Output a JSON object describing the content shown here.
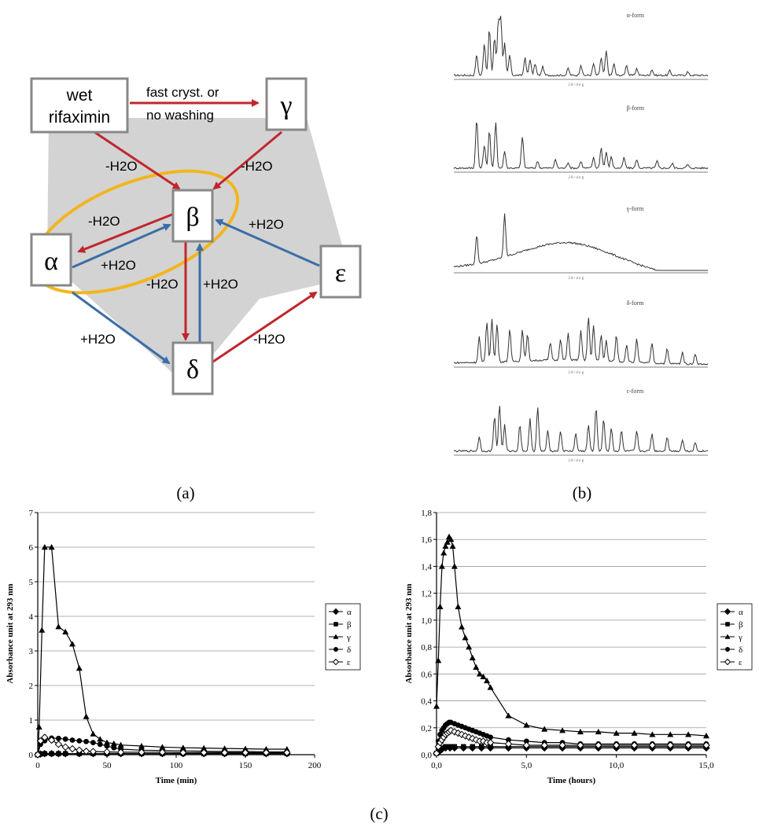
{
  "figure": {
    "panel_labels": [
      "(a)",
      "(b)",
      "(c)"
    ]
  },
  "diagram": {
    "nodes": {
      "wet": [
        "wet",
        "rifaximin"
      ],
      "gamma": "γ",
      "beta": "β",
      "alpha": "α",
      "epsilon": "ε",
      "delta": "δ"
    },
    "edges": {
      "wet_gamma": [
        "fast cryst. or",
        "no washing"
      ],
      "wet_beta": "-H2O",
      "gamma_beta": "-H2O",
      "beta_alpha": "-H2O",
      "alpha_beta": "+H2O",
      "epsilon_beta": "+H2O",
      "beta_delta": "-H2O",
      "delta_beta": "+H2O",
      "alpha_delta": "+H2O",
      "delta_epsilon": "-H2O"
    },
    "colors": {
      "dehydration": "#c0272d",
      "hydration": "#3b6ea8",
      "highlight": "#f2b51d",
      "region": "#d3d3d3"
    }
  },
  "xrd": {
    "panels": [
      {
        "name": "α-form",
        "axis_label": "2 θ / d e g"
      },
      {
        "name": "β-form",
        "axis_label": "2 θ / d e g"
      },
      {
        "name": "γ-form",
        "axis_label": "2 θ / d e g"
      },
      {
        "name": "δ-form",
        "axis_label": "2 θ / d e g"
      },
      {
        "name": "ε-form",
        "axis_label": "2 θ / d e g"
      }
    ]
  },
  "chart_data": [
    {
      "type": "line",
      "ylabel": "Absorbance unit at 293 nm",
      "xlabel": "Time (min)",
      "xlim": [
        0,
        200
      ],
      "ylim": [
        0,
        7
      ],
      "xticks": [
        "0",
        "50",
        "100",
        "150",
        "200"
      ],
      "yticks": [
        "0",
        "1",
        "2",
        "3",
        "4",
        "5",
        "6",
        "7"
      ],
      "grid": true,
      "legend_position": "right",
      "series": [
        {
          "name": "α",
          "marker": "diamond",
          "points": [
            [
              0,
              0
            ],
            [
              2,
              0.02
            ],
            [
              5,
              0.03
            ],
            [
              10,
              0.03
            ],
            [
              15,
              0.03
            ],
            [
              20,
              0.03
            ],
            [
              30,
              0.03
            ],
            [
              40,
              0.03
            ],
            [
              50,
              0.03
            ],
            [
              60,
              0.03
            ],
            [
              75,
              0.03
            ],
            [
              90,
              0.03
            ],
            [
              105,
              0.03
            ],
            [
              120,
              0.03
            ],
            [
              135,
              0.03
            ],
            [
              150,
              0.03
            ],
            [
              165,
              0.03
            ],
            [
              180,
              0.03
            ]
          ]
        },
        {
          "name": "β",
          "marker": "square",
          "points": [
            [
              0,
              0
            ],
            [
              2,
              0.02
            ],
            [
              5,
              0.03
            ],
            [
              10,
              0.03
            ],
            [
              15,
              0.03
            ],
            [
              20,
              0.03
            ],
            [
              30,
              0.03
            ],
            [
              40,
              0.03
            ],
            [
              50,
              0.03
            ],
            [
              60,
              0.03
            ],
            [
              75,
              0.03
            ],
            [
              90,
              0.03
            ],
            [
              105,
              0.03
            ],
            [
              120,
              0.03
            ],
            [
              135,
              0.03
            ],
            [
              150,
              0.03
            ],
            [
              165,
              0.03
            ],
            [
              180,
              0.03
            ]
          ]
        },
        {
          "name": "γ",
          "marker": "triangle",
          "points": [
            [
              0,
              0
            ],
            [
              1,
              0.8
            ],
            [
              3,
              3.6
            ],
            [
              5,
              6.0
            ],
            [
              10,
              6.0
            ],
            [
              15,
              3.7
            ],
            [
              20,
              3.55
            ],
            [
              25,
              3.2
            ],
            [
              30,
              2.5
            ],
            [
              35,
              1.1
            ],
            [
              40,
              0.6
            ],
            [
              45,
              0.45
            ],
            [
              50,
              0.35
            ],
            [
              55,
              0.32
            ],
            [
              60,
              0.28
            ],
            [
              75,
              0.25
            ],
            [
              90,
              0.22
            ],
            [
              105,
              0.2
            ],
            [
              120,
              0.19
            ],
            [
              135,
              0.18
            ],
            [
              150,
              0.17
            ],
            [
              165,
              0.16
            ],
            [
              180,
              0.16
            ]
          ]
        },
        {
          "name": "δ",
          "marker": "circle",
          "points": [
            [
              0,
              0
            ],
            [
              2,
              0.3
            ],
            [
              5,
              0.4
            ],
            [
              10,
              0.48
            ],
            [
              15,
              0.47
            ],
            [
              20,
              0.45
            ],
            [
              25,
              0.42
            ],
            [
              30,
              0.4
            ],
            [
              35,
              0.38
            ],
            [
              40,
              0.35
            ],
            [
              45,
              0.3
            ],
            [
              50,
              0.25
            ],
            [
              55,
              0.2
            ],
            [
              60,
              0.16
            ],
            [
              75,
              0.13
            ],
            [
              90,
              0.12
            ],
            [
              105,
              0.11
            ],
            [
              120,
              0.1
            ],
            [
              135,
              0.09
            ],
            [
              150,
              0.09
            ],
            [
              165,
              0.08
            ],
            [
              180,
              0.08
            ]
          ]
        },
        {
          "name": "ε",
          "marker": "open-diamond",
          "points": [
            [
              0,
              0
            ],
            [
              2,
              0.4
            ],
            [
              5,
              0.5
            ],
            [
              10,
              0.42
            ],
            [
              15,
              0.3
            ],
            [
              20,
              0.22
            ],
            [
              25,
              0.17
            ],
            [
              30,
              0.13
            ],
            [
              35,
              0.1
            ],
            [
              40,
              0.09
            ],
            [
              50,
              0.08
            ],
            [
              60,
              0.07
            ],
            [
              75,
              0.07
            ],
            [
              90,
              0.07
            ],
            [
              105,
              0.06
            ],
            [
              120,
              0.06
            ],
            [
              135,
              0.06
            ],
            [
              150,
              0.06
            ],
            [
              165,
              0.06
            ],
            [
              180,
              0.06
            ]
          ]
        }
      ]
    },
    {
      "type": "line",
      "ylabel": "Absorbance unit at 293 nm",
      "xlabel": "Time (hours)",
      "xlim": [
        0,
        15
      ],
      "ylim": [
        0,
        1.8
      ],
      "xticks": [
        "0,0",
        "5,0",
        "10,0",
        "15,0"
      ],
      "yticks": [
        "0,0",
        "0,2",
        "0,4",
        "0,6",
        "0,8",
        "1,0",
        "1,2",
        "1,4",
        "1,6",
        "1,8"
      ],
      "grid": true,
      "legend_position": "right",
      "series": [
        {
          "name": "α",
          "marker": "diamond",
          "points": [
            [
              0,
              0.01
            ],
            [
              0.1,
              0.02
            ],
            [
              0.2,
              0.03
            ],
            [
              0.3,
              0.04
            ],
            [
              0.5,
              0.05
            ],
            [
              0.75,
              0.05
            ],
            [
              1,
              0.05
            ],
            [
              1.5,
              0.05
            ],
            [
              2,
              0.05
            ],
            [
              2.5,
              0.05
            ],
            [
              3,
              0.05
            ],
            [
              4,
              0.05
            ],
            [
              5,
              0.05
            ],
            [
              6,
              0.05
            ],
            [
              7,
              0.05
            ],
            [
              8,
              0.05
            ],
            [
              9,
              0.05
            ],
            [
              10,
              0.05
            ],
            [
              11,
              0.05
            ],
            [
              12,
              0.05
            ],
            [
              13,
              0.05
            ],
            [
              14,
              0.05
            ],
            [
              15,
              0.05
            ]
          ]
        },
        {
          "name": "β",
          "marker": "square",
          "points": [
            [
              0,
              0.01
            ],
            [
              0.1,
              0.03
            ],
            [
              0.2,
              0.04
            ],
            [
              0.3,
              0.05
            ],
            [
              0.5,
              0.06
            ],
            [
              0.75,
              0.06
            ],
            [
              1,
              0.06
            ],
            [
              1.5,
              0.06
            ],
            [
              2,
              0.06
            ],
            [
              2.5,
              0.06
            ],
            [
              3,
              0.06
            ],
            [
              4,
              0.06
            ],
            [
              5,
              0.06
            ],
            [
              6,
              0.06
            ],
            [
              7,
              0.06
            ],
            [
              8,
              0.06
            ],
            [
              9,
              0.06
            ],
            [
              10,
              0.06
            ],
            [
              11,
              0.06
            ],
            [
              12,
              0.06
            ],
            [
              13,
              0.06
            ],
            [
              14,
              0.06
            ],
            [
              15,
              0.06
            ]
          ]
        },
        {
          "name": "γ",
          "marker": "triangle",
          "points": [
            [
              0,
              0.36
            ],
            [
              0.1,
              0.7
            ],
            [
              0.2,
              1.1
            ],
            [
              0.3,
              1.4
            ],
            [
              0.4,
              1.5
            ],
            [
              0.5,
              1.55
            ],
            [
              0.6,
              1.58
            ],
            [
              0.7,
              1.62
            ],
            [
              0.8,
              1.6
            ],
            [
              0.9,
              1.55
            ],
            [
              1.0,
              1.4
            ],
            [
              1.2,
              1.1
            ],
            [
              1.4,
              0.95
            ],
            [
              1.6,
              0.87
            ],
            [
              1.8,
              0.8
            ],
            [
              2.0,
              0.72
            ],
            [
              2.2,
              0.65
            ],
            [
              2.4,
              0.6
            ],
            [
              2.6,
              0.58
            ],
            [
              2.8,
              0.55
            ],
            [
              3.0,
              0.5
            ],
            [
              4.0,
              0.29
            ],
            [
              5.0,
              0.22
            ],
            [
              6.0,
              0.19
            ],
            [
              7.0,
              0.18
            ],
            [
              8.0,
              0.17
            ],
            [
              9.0,
              0.17
            ],
            [
              10.0,
              0.16
            ],
            [
              11.0,
              0.16
            ],
            [
              12.0,
              0.15
            ],
            [
              13.0,
              0.15
            ],
            [
              14.0,
              0.15
            ],
            [
              15.0,
              0.14
            ]
          ]
        },
        {
          "name": "δ",
          "marker": "circle",
          "points": [
            [
              0,
              0.01
            ],
            [
              0.1,
              0.1
            ],
            [
              0.2,
              0.15
            ],
            [
              0.3,
              0.18
            ],
            [
              0.4,
              0.2
            ],
            [
              0.5,
              0.22
            ],
            [
              0.6,
              0.23
            ],
            [
              0.7,
              0.24
            ],
            [
              0.8,
              0.24
            ],
            [
              1.0,
              0.23
            ],
            [
              1.2,
              0.22
            ],
            [
              1.4,
              0.21
            ],
            [
              1.6,
              0.2
            ],
            [
              1.8,
              0.19
            ],
            [
              2.0,
              0.18
            ],
            [
              2.2,
              0.17
            ],
            [
              2.4,
              0.16
            ],
            [
              2.6,
              0.15
            ],
            [
              2.8,
              0.14
            ],
            [
              3.0,
              0.13
            ],
            [
              4.0,
              0.11
            ],
            [
              5.0,
              0.1
            ],
            [
              6.0,
              0.09
            ],
            [
              7.0,
              0.09
            ],
            [
              8.0,
              0.08
            ],
            [
              9.0,
              0.08
            ],
            [
              10.0,
              0.08
            ],
            [
              11.0,
              0.08
            ],
            [
              12.0,
              0.08
            ],
            [
              13.0,
              0.08
            ],
            [
              14.0,
              0.08
            ],
            [
              15.0,
              0.08
            ]
          ]
        },
        {
          "name": "ε",
          "marker": "open-diamond",
          "points": [
            [
              0,
              0.01
            ],
            [
              0.1,
              0.06
            ],
            [
              0.2,
              0.09
            ],
            [
              0.3,
              0.11
            ],
            [
              0.4,
              0.13
            ],
            [
              0.5,
              0.15
            ],
            [
              0.6,
              0.16
            ],
            [
              0.7,
              0.17
            ],
            [
              0.8,
              0.18
            ],
            [
              1.0,
              0.17
            ],
            [
              1.2,
              0.16
            ],
            [
              1.4,
              0.15
            ],
            [
              1.6,
              0.14
            ],
            [
              1.8,
              0.13
            ],
            [
              2.0,
              0.12
            ],
            [
              2.2,
              0.11
            ],
            [
              2.4,
              0.1
            ],
            [
              2.6,
              0.1
            ],
            [
              2.8,
              0.09
            ],
            [
              3.0,
              0.09
            ],
            [
              4.0,
              0.08
            ],
            [
              5.0,
              0.07
            ],
            [
              6.0,
              0.07
            ],
            [
              7.0,
              0.07
            ],
            [
              8.0,
              0.07
            ],
            [
              9.0,
              0.07
            ],
            [
              10.0,
              0.07
            ],
            [
              11.0,
              0.07
            ],
            [
              12.0,
              0.07
            ],
            [
              13.0,
              0.07
            ],
            [
              14.0,
              0.07
            ],
            [
              15.0,
              0.07
            ]
          ]
        }
      ]
    }
  ]
}
